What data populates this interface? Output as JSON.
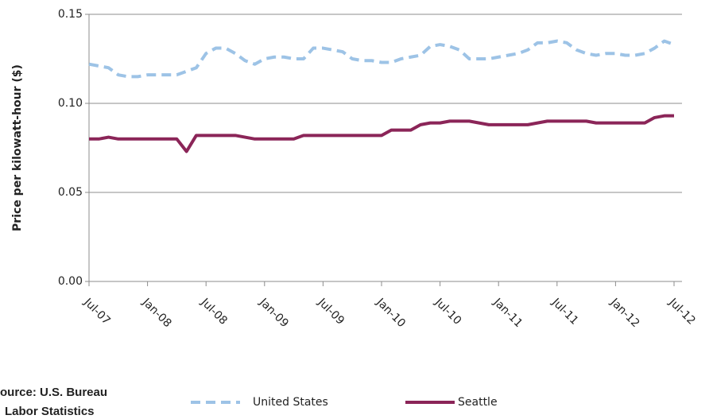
{
  "chart_data": {
    "type": "line",
    "y_label": "Price per kilowatt-hour ($)",
    "source": [
      "ource: U.S. Bureau",
      "Labor Statistics"
    ],
    "categories": [
      "Jul-07",
      null,
      null,
      null,
      null,
      null,
      "Jan-08",
      null,
      null,
      null,
      null,
      null,
      "Jul-08",
      null,
      null,
      null,
      null,
      null,
      "Jan-09",
      null,
      null,
      null,
      null,
      null,
      "Jul-09",
      null,
      null,
      null,
      null,
      null,
      "Jan-10",
      null,
      null,
      null,
      null,
      null,
      "Jul-10",
      null,
      null,
      null,
      null,
      null,
      "Jan-11",
      null,
      null,
      null,
      null,
      null,
      "Jul-11",
      null,
      null,
      null,
      null,
      null,
      "Jan-12",
      null,
      null,
      null,
      null,
      null,
      "Jul-12"
    ],
    "series": [
      {
        "name": "United States",
        "color": "#9dc3e6",
        "dashed": true,
        "values": [
          0.122,
          0.121,
          0.12,
          0.116,
          0.115,
          0.115,
          0.116,
          0.116,
          0.116,
          0.116,
          0.118,
          0.12,
          0.128,
          0.131,
          0.131,
          0.128,
          0.124,
          0.122,
          0.125,
          0.126,
          0.126,
          0.125,
          0.125,
          0.131,
          0.131,
          0.13,
          0.129,
          0.125,
          0.124,
          0.124,
          0.123,
          0.123,
          0.125,
          0.126,
          0.127,
          0.132,
          0.133,
          0.132,
          0.13,
          0.125,
          0.125,
          0.125,
          0.126,
          0.127,
          0.128,
          0.13,
          0.134,
          0.134,
          0.135,
          0.134,
          0.13,
          0.128,
          0.127,
          0.128,
          0.128,
          0.127,
          0.127,
          0.128,
          0.131,
          0.135,
          0.133
        ]
      },
      {
        "name": "Seattle",
        "color": "#8b2558",
        "dashed": false,
        "values": [
          0.08,
          0.08,
          0.081,
          0.08,
          0.08,
          0.08,
          0.08,
          0.08,
          0.08,
          0.08,
          0.073,
          0.082,
          0.082,
          0.082,
          0.082,
          0.082,
          0.081,
          0.08,
          0.08,
          0.08,
          0.08,
          0.08,
          0.082,
          0.082,
          0.082,
          0.082,
          0.082,
          0.082,
          0.082,
          0.082,
          0.082,
          0.085,
          0.085,
          0.085,
          0.088,
          0.089,
          0.089,
          0.09,
          0.09,
          0.09,
          0.089,
          0.088,
          0.088,
          0.088,
          0.088,
          0.088,
          0.089,
          0.09,
          0.09,
          0.09,
          0.09,
          0.09,
          0.089,
          0.089,
          0.089,
          0.089,
          0.089,
          0.089,
          0.092,
          0.093,
          0.093
        ]
      }
    ],
    "ylim": [
      0,
      0.15
    ],
    "yticks": [
      {
        "value": 0,
        "label": "0.00"
      },
      {
        "value": 0.05,
        "label": "0.05"
      },
      {
        "value": 0.1,
        "label": "0.10"
      },
      {
        "value": 0.15,
        "label": "0.15"
      }
    ],
    "grid": true
  }
}
